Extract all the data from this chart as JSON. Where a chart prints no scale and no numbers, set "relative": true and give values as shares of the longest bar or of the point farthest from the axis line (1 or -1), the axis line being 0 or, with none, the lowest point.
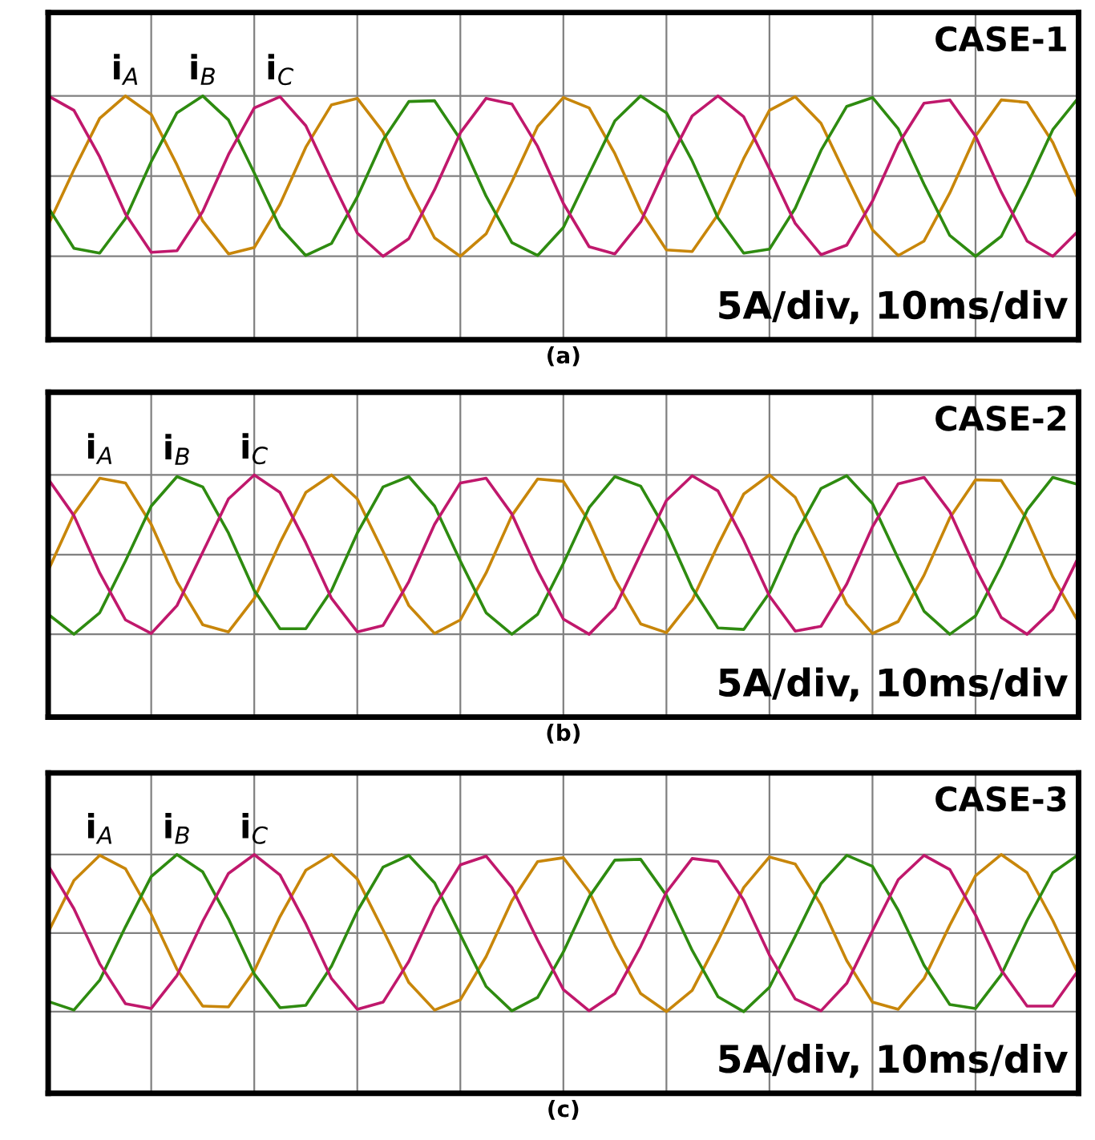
{
  "chart_data": [
    {
      "type": "line",
      "title": "CASE-1",
      "xlabel": "(a)",
      "annotations": [
        "5A/div, 10ms/div"
      ],
      "relative": true,
      "grid": true,
      "tick_labels": false,
      "categories": [
        null,
        null,
        null,
        null,
        null,
        null,
        null,
        null,
        null,
        null,
        null,
        null,
        null,
        null,
        null,
        null,
        null,
        null,
        null,
        null,
        null,
        null,
        null,
        null,
        null,
        null,
        null,
        null,
        null,
        null,
        null,
        null,
        null,
        null,
        null,
        null,
        null,
        null,
        null,
        null,
        null
      ],
      "series": [
        {
          "name": "i$_{A}$",
          "color": "#c8860a",
          "values": [
            -0.61,
            0.08,
            0.72,
            1.0,
            0.77,
            0.14,
            -0.56,
            -0.97,
            -0.89,
            -0.35,
            0.36,
            0.89,
            0.97,
            0.55,
            -0.15,
            -0.77,
            -1.0,
            -0.72,
            -0.07,
            0.62,
            0.98,
            0.85,
            0.28,
            -0.43,
            -0.92,
            -0.94,
            -0.48,
            0.22,
            0.82,
            0.99,
            0.66,
            -0.01,
            -0.67,
            -0.99,
            -0.81,
            -0.21,
            0.5,
            0.95,
            0.92,
            0.42,
            -0.3
          ]
        },
        {
          "name": "i$_{B}$",
          "color": "#2e8b10",
          "values": [
            -0.39,
            -0.9,
            -0.96,
            -0.53,
            0.18,
            0.79,
            1.0,
            0.7,
            0.04,
            -0.64,
            -0.99,
            -0.84,
            -0.26,
            0.45,
            0.93,
            0.94,
            0.46,
            -0.25,
            -0.83,
            -0.99,
            -0.64,
            0.03,
            0.69,
            1.0,
            0.79,
            0.19,
            -0.52,
            -0.96,
            -0.91,
            -0.4,
            0.32,
            0.87,
            0.98,
            0.59,
            -0.1,
            -0.74,
            -1.0,
            -0.75,
            -0.11,
            0.58,
            0.98
          ]
        },
        {
          "name": "i$_{C}$",
          "color": "#c0186c",
          "values": [
            1.0,
            0.82,
            0.24,
            -0.47,
            -0.95,
            -0.93,
            -0.44,
            0.27,
            0.85,
            0.99,
            0.63,
            -0.05,
            -0.71,
            -1.0,
            -0.78,
            -0.17,
            0.54,
            0.97,
            0.9,
            0.37,
            -0.34,
            -0.88,
            -0.97,
            -0.57,
            0.13,
            0.75,
            1.0,
            0.74,
            0.09,
            -0.59,
            -0.98,
            -0.86,
            -0.31,
            0.4,
            0.91,
            0.95,
            0.5,
            -0.2,
            -0.81,
            -1.0,
            -0.68
          ]
        }
      ]
    },
    {
      "type": "line",
      "title": "CASE-2",
      "xlabel": "(b)",
      "annotations": [
        "5A/div, 10ms/div"
      ],
      "relative": true,
      "grid": true,
      "tick_labels": false,
      "categories": [
        null,
        null,
        null,
        null,
        null,
        null,
        null,
        null,
        null,
        null,
        null,
        null,
        null,
        null,
        null,
        null,
        null,
        null,
        null,
        null,
        null,
        null,
        null,
        null,
        null,
        null,
        null,
        null,
        null,
        null,
        null,
        null,
        null,
        null,
        null,
        null,
        null,
        null,
        null,
        null,
        null
      ],
      "series": [
        {
          "name": "i$_{A}$",
          "color": "#c8860a",
          "values": [
            -0.2,
            0.51,
            0.96,
            0.9,
            0.38,
            -0.34,
            -0.88,
            -0.97,
            -0.55,
            0.15,
            0.78,
            1.0,
            0.7,
            0.04,
            -0.64,
            -0.99,
            -0.82,
            -0.23,
            0.49,
            0.95,
            0.92,
            0.41,
            -0.31,
            -0.87,
            -0.98,
            -0.57,
            0.12,
            0.76,
            1.0,
            0.72,
            0.07,
            -0.62,
            -0.99,
            -0.84,
            -0.26,
            0.46,
            0.94,
            0.93,
            0.44,
            -0.28,
            -0.85
          ]
        },
        {
          "name": "i$_{B}$",
          "color": "#2e8b10",
          "values": [
            -0.75,
            -1.0,
            -0.73,
            -0.08,
            0.61,
            0.98,
            0.85,
            0.27,
            -0.45,
            -0.93,
            -0.93,
            -0.45,
            0.27,
            0.85,
            0.98,
            0.61,
            -0.08,
            -0.73,
            -1.0,
            -0.75,
            -0.11,
            0.59,
            0.98,
            0.86,
            0.3,
            -0.42,
            -0.92,
            -0.94,
            -0.48,
            0.24,
            0.83,
            0.99,
            0.64,
            -0.05,
            -0.71,
            -1.0,
            -0.77,
            -0.14,
            0.56,
            0.97,
            0.88
          ]
        },
        {
          "name": "i$_{C}$",
          "color": "#c0186c",
          "values": [
            0.95,
            0.49,
            -0.23,
            -0.82,
            -0.99,
            -0.64,
            0.03,
            0.7,
            1.0,
            0.78,
            0.15,
            -0.55,
            -0.97,
            -0.89,
            -0.34,
            0.38,
            0.9,
            0.96,
            0.51,
            -0.2,
            -0.81,
            -1.0,
            -0.67,
            0.01,
            0.68,
            0.99,
            0.8,
            0.18,
            -0.52,
            -0.96,
            -0.9,
            -0.37,
            0.35,
            0.89,
            0.97,
            0.54,
            -0.17,
            -0.79,
            -1.0,
            -0.69,
            -0.03
          ]
        }
      ]
    },
    {
      "type": "line",
      "title": "CASE-3",
      "xlabel": "(c)",
      "annotations": [
        "5A/div, 10ms/div"
      ],
      "relative": true,
      "grid": true,
      "tick_labels": false,
      "categories": [
        null,
        null,
        null,
        null,
        null,
        null,
        null,
        null,
        null,
        null,
        null,
        null,
        null,
        null,
        null,
        null,
        null,
        null,
        null,
        null,
        null,
        null,
        null,
        null,
        null,
        null,
        null,
        null,
        null,
        null,
        null,
        null,
        null,
        null,
        null,
        null,
        null,
        null,
        null,
        null,
        null
      ],
      "series": [
        {
          "name": "i$_{A}$",
          "color": "#c8860a",
          "values": [
            0.01,
            0.67,
            0.99,
            0.82,
            0.24,
            -0.46,
            -0.93,
            -0.94,
            -0.48,
            0.21,
            0.8,
            1.0,
            0.69,
            0.04,
            -0.63,
            -0.98,
            -0.85,
            -0.3,
            0.41,
            0.91,
            0.96,
            0.53,
            -0.16,
            -0.77,
            -1.0,
            -0.73,
            -0.1,
            0.58,
            0.97,
            0.88,
            0.36,
            -0.35,
            -0.88,
            -0.97,
            -0.58,
            0.1,
            0.73,
            1.0,
            0.77,
            0.16,
            -0.53
          ]
        },
        {
          "name": "i$_{B}$",
          "color": "#2e8b10",
          "values": [
            -0.87,
            -0.98,
            -0.6,
            0.08,
            0.72,
            1.0,
            0.78,
            0.18,
            -0.52,
            -0.95,
            -0.92,
            -0.42,
            0.28,
            0.84,
            0.99,
            0.64,
            -0.02,
            -0.68,
            -0.99,
            -0.82,
            -0.24,
            0.46,
            0.93,
            0.94,
            0.48,
            -0.22,
            -0.81,
            -1.0,
            -0.69,
            -0.04,
            0.63,
            0.99,
            0.85,
            0.29,
            -0.41,
            -0.91,
            -0.96,
            -0.53,
            0.16,
            0.77,
            1.0
          ]
        },
        {
          "name": "i$_{C}$",
          "color": "#c0186c",
          "values": [
            0.86,
            0.31,
            -0.39,
            -0.9,
            -0.96,
            -0.54,
            0.15,
            0.76,
            1.0,
            0.74,
            0.12,
            -0.58,
            -0.97,
            -0.88,
            -0.36,
            0.34,
            0.87,
            0.98,
            0.58,
            -0.09,
            -0.72,
            -0.99,
            -0.77,
            -0.17,
            0.52,
            0.95,
            0.91,
            0.42,
            -0.28,
            -0.84,
            -0.99,
            -0.64,
            0.03,
            0.68,
            0.99,
            0.81,
            0.23,
            -0.47,
            -0.93,
            -0.93,
            -0.47
          ]
        }
      ]
    }
  ]
}
